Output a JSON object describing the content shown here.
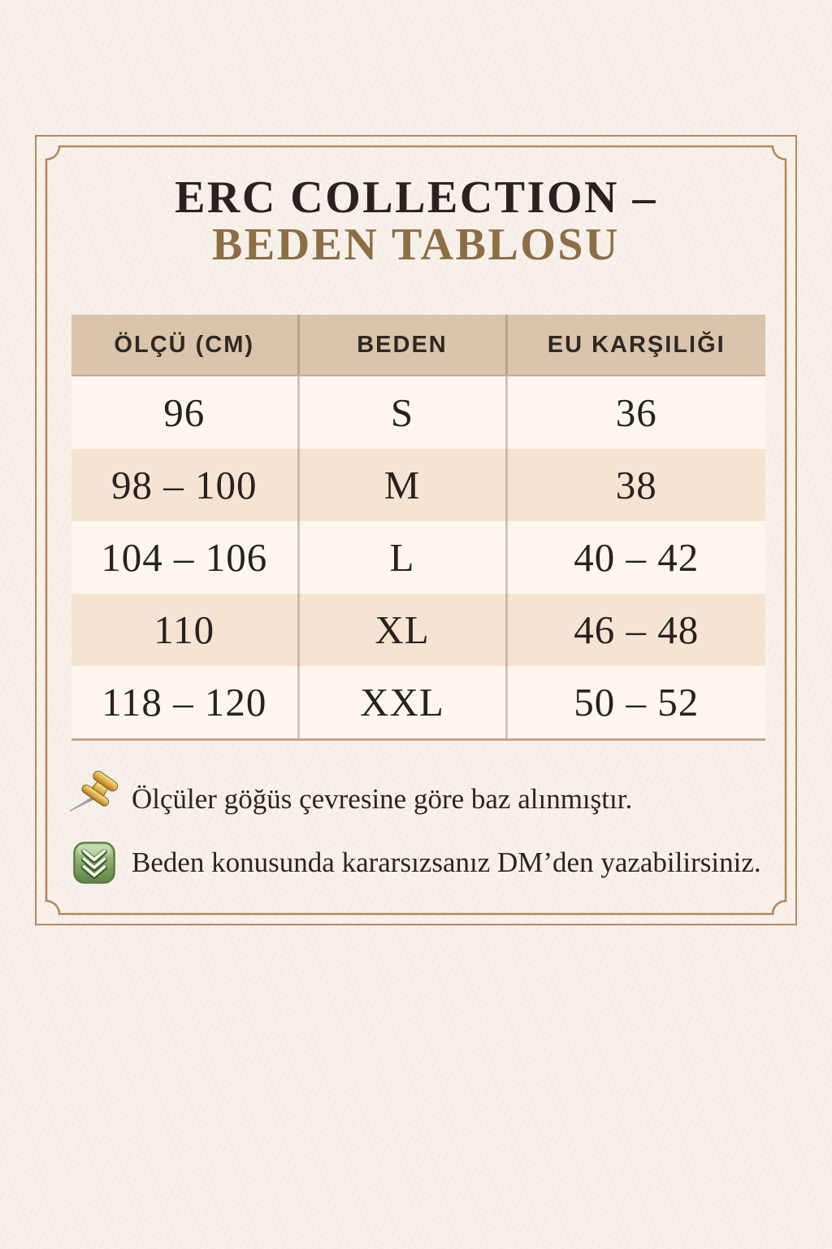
{
  "page": {
    "background_color": "#f8f1eb",
    "frame_color": "#b38a5c"
  },
  "title": {
    "line1": "ERC COLLECTION –",
    "line2": "BEDEN TABLOSU",
    "line1_color": "#292221",
    "line2_color": "#8c6e45"
  },
  "size_table": {
    "columns": [
      "ÖLÇÜ (CM)",
      "BEDEN",
      "EU KARŞILIĞI"
    ],
    "column_keys": [
      "olcu-cm",
      "beden",
      "eu-karsiligi"
    ],
    "rows": [
      [
        "96",
        "S",
        "36"
      ],
      [
        "98 – 100",
        "M",
        "38"
      ],
      [
        "104 – 106",
        "L",
        "40 – 42"
      ],
      [
        "110",
        "XL",
        "46 – 48"
      ],
      [
        "118 – 120",
        "XXL",
        "50 – 52"
      ]
    ],
    "header_bg_color": "#dac4ab",
    "row_bg_color": "#fcf6ef",
    "row_alt_bg_color": "#f7e3d2"
  },
  "notes": [
    {
      "icon": "pushpin-icon",
      "text": "Ölçüler göğüs çevresine göre baz alınmıştır."
    },
    {
      "icon": "incoming-envelope-icon",
      "text": "Beden konusunda kararsızsanız DM’den yazabilirsiniz."
    }
  ]
}
